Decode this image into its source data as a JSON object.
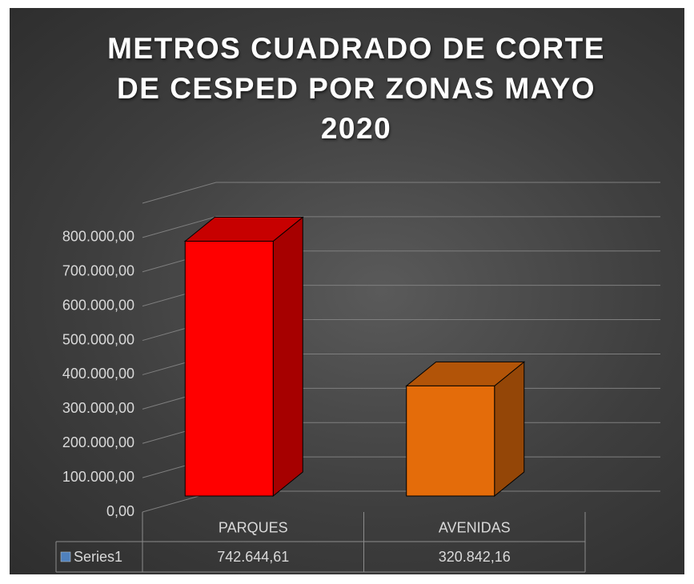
{
  "chart_data": {
    "type": "bar3d",
    "title": "METROS CUADRADO DE CORTE DE CESPED POR ZONAS MAYO 2020",
    "categories": [
      "PARQUES",
      "AVENIDAS"
    ],
    "series": [
      {
        "name": "Series1",
        "color": "#4f81bd",
        "values": [
          742644.61,
          320842.16
        ],
        "value_labels": [
          "742.644,61",
          "320.842,16"
        ]
      }
    ],
    "bar_colors": [
      "#ff0000",
      "#e46c0a"
    ],
    "ylim": [
      0,
      900000
    ],
    "yticks": [
      {
        "value": 0,
        "label": "0,00"
      },
      {
        "value": 100000,
        "label": "100.000,00"
      },
      {
        "value": 200000,
        "label": "200.000,00"
      },
      {
        "value": 300000,
        "label": "300.000,00"
      },
      {
        "value": 400000,
        "label": "400.000,00"
      },
      {
        "value": 500000,
        "label": "500.000,00"
      },
      {
        "value": 600000,
        "label": "600.000,00"
      },
      {
        "value": 700000,
        "label": "700.000,00"
      },
      {
        "value": 800000,
        "label": "800.000,00"
      }
    ],
    "grid": true,
    "data_table": true
  }
}
